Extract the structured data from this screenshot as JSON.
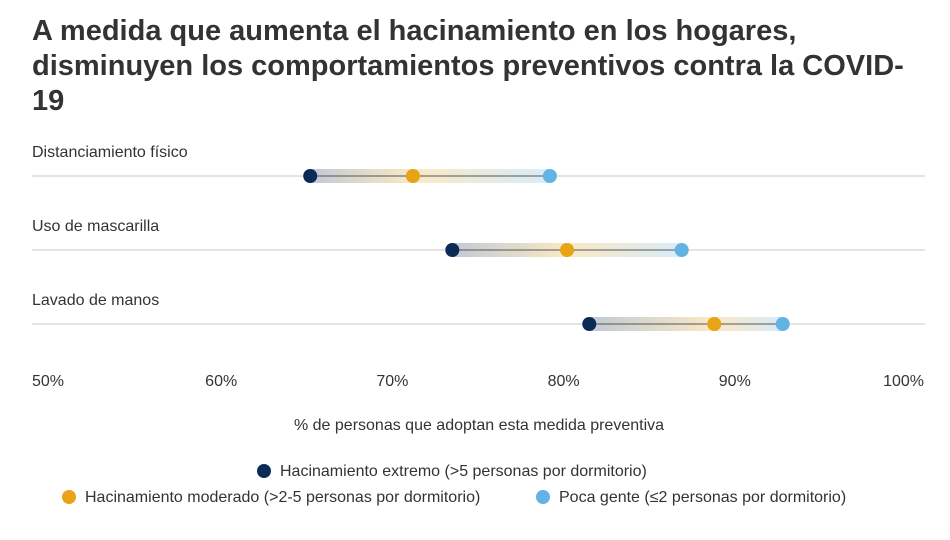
{
  "chart_data": {
    "type": "dumbbell",
    "title": "A medida que aumenta el hacinamiento en los hogares, disminuyen los comportamientos preventivos contra la COVID-19",
    "xlabel": "% de personas que adoptan esta medida preventiva",
    "xlim": [
      50,
      100
    ],
    "x_ticks": [
      50,
      60,
      70,
      80,
      90,
      100
    ],
    "x_tick_labels": [
      "50%",
      "60%",
      "70%",
      "80%",
      "90%",
      "100%"
    ],
    "categories": [
      "Distanciamiento físico",
      "Uso de mascarilla",
      "Lavado de manos"
    ],
    "series": [
      {
        "name": "Hacinamiento extremo (>5 personas por dormitorio)",
        "color": "#0b2a55",
        "values": [
          65.2,
          73.5,
          81.5
        ]
      },
      {
        "name": "Hacinamiento moderado (>2-5 personas por dormitorio)",
        "color": "#e8a317",
        "values": [
          71.2,
          80.2,
          88.8
        ]
      },
      {
        "name": "Poca gente (≤2 personas por dormitorio)",
        "color": "#62b2e4",
        "values": [
          79.2,
          86.9,
          92.8
        ]
      }
    ],
    "legend_position": "bottom",
    "grid": false
  }
}
